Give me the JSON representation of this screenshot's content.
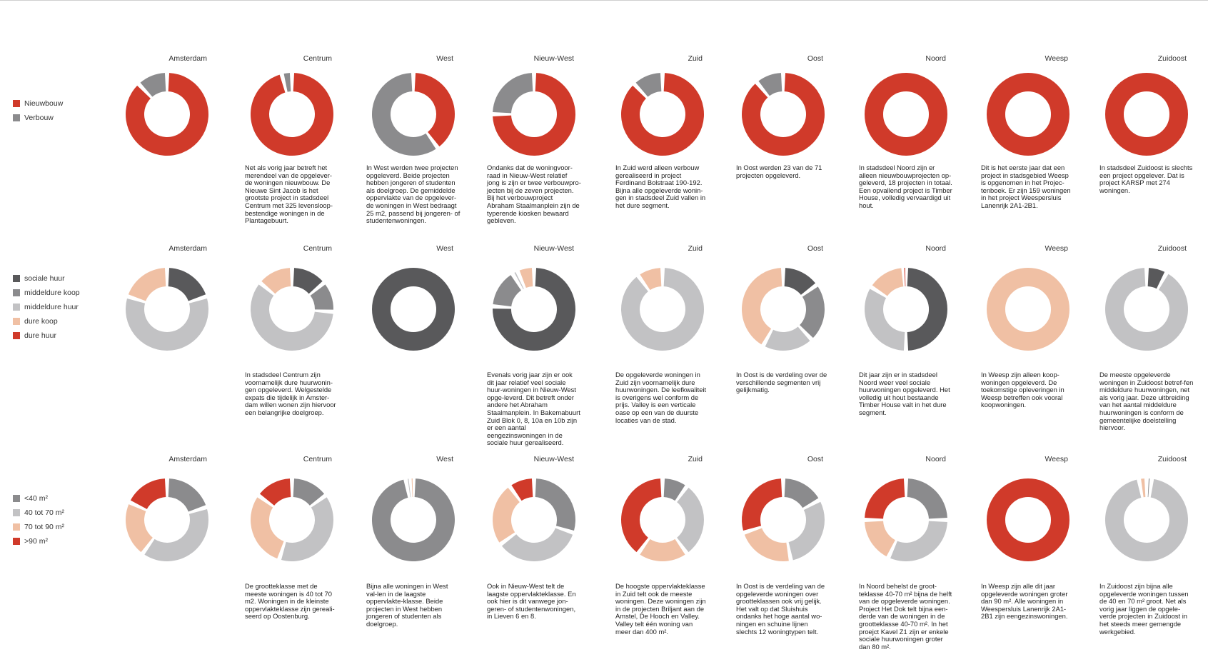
{
  "colors": {
    "Nieuwbouw": "#d03a2a",
    "Verbouw": "#8b8b8d",
    "sociale huur": "#59595b",
    "middeldure koop": "#8b8b8d",
    "middeldure huur": "#c2c2c4",
    "dure koop": "#f0c0a4",
    "dure huur": "#d03a2a",
    "<40 m²": "#8b8b8d",
    "40 tot 70 m²": "#c2c2c4",
    "70 tot 90 m²": "#f0c0a4",
    ">90 m²": "#d03a2a"
  },
  "chart_data": [
    {
      "type": "pie",
      "variant": "donut",
      "legend": [
        "Nieuwbouw",
        "Verbouw"
      ],
      "series": [
        {
          "name": "Nieuwbouw",
          "values": [
            88,
            96,
            40,
            75,
            88,
            89,
            100,
            100,
            100
          ]
        },
        {
          "name": "Verbouw",
          "values": [
            12,
            4,
            60,
            25,
            12,
            11,
            0,
            0,
            0
          ]
        }
      ],
      "panels": [
        {
          "title": "Amsterdam",
          "text": ""
        },
        {
          "title": "Centrum",
          "text": "Net als vorig jaar betreft het merendeel van de opgelever-de woningen nieuwbouw. De Nieuwe Sint Jacob is het grootste project in stadsdeel Centrum met 325 levensloop-bestendige woningen in de Plantagebuurt."
        },
        {
          "title": "West",
          "text": "In West werden twee projecten opgeleverd. Beide projecten hebben jongeren of studenten als doelgroep. De gemiddelde oppervlakte van de opgelever-de woningen in West bedraagt 25 m2, passend bij jongeren- of studentenwoningen."
        },
        {
          "title": "Nieuw-West",
          "text": "Ondanks dat de woningvoor-raad in Nieuw-West relatief jong is zijn er twee verbouwpro-jecten bij de zeven projecten. Bij het verbouwproject Abraham Staalmanplein zijn de typerende kiosken bewaard gebleven."
        },
        {
          "title": "Zuid",
          "text": "In Zuid werd alleen verbouw gerealiseerd in project Ferdinand Bolstraat 190-192. Bijna alle opgeleverde wonin-gen in stadsdeel Zuid vallen in het dure segment."
        },
        {
          "title": "Oost",
          "text": "In Oost werden 23 van de 71 projecten opgeleverd."
        },
        {
          "title": "Noord",
          "text": "In stadsdeel Noord zijn er alleen nieuwbouwprojecten op-geleverd, 18 projecten in totaal. Een opvallend project is Timber House, volledig vervaardigd uit hout."
        },
        {
          "title": "Weesp",
          "text": "Dit is het eerste jaar dat een project in stadsgebied Weesp is opgenomen in het Projec-tenboek. Er zijn 159 woningen in het project Weespersluis Lanenrijk 2A1-2B1."
        },
        {
          "title": "Zuidoost",
          "text": "In stadsdeel Zuidoost is slechts een project opgelever. Dat is project KARSP met 274 woningen."
        }
      ]
    },
    {
      "type": "pie",
      "variant": "donut",
      "legend": [
        "sociale huur",
        "middeldure koop",
        "middeldure huur",
        "dure koop",
        "dure huur"
      ],
      "series": [
        {
          "name": "sociale huur",
          "values": [
            20,
            14,
            100,
            70,
            0,
            15,
            50,
            0,
            8
          ]
        },
        {
          "name": "middeldure koop",
          "values": [
            0,
            12,
            0,
            14,
            0,
            23,
            0,
            0,
            0
          ]
        },
        {
          "name": "middeldure huur",
          "values": [
            60,
            60,
            0,
            2,
            90,
            20,
            34,
            0,
            92
          ]
        },
        {
          "name": "dure koop",
          "values": [
            20,
            14,
            0,
            6,
            10,
            42,
            15,
            100,
            0
          ]
        },
        {
          "name": "dure huur",
          "values": [
            0,
            0,
            0,
            0,
            0,
            0,
            1,
            0,
            0
          ]
        }
      ],
      "panels": [
        {
          "title": "Amsterdam",
          "text": ""
        },
        {
          "title": "Centrum",
          "text": "In stadsdeel Centrum zijn voornamelijk dure huurwonin-gen opgeleverd. Welgestelde expats die tijdelijk in Amster-dam willen wonen zijn hiervoor een belangrijke doelgroep."
        },
        {
          "title": "West",
          "text": ""
        },
        {
          "title": "Nieuw-West",
          "text": "Evenals vorig jaar zijn er ook dit jaar relatief veel sociale huur-woningen in Nieuw-West opge-leverd. Dit betreft onder andere het Abraham Staalmanplein. In Bakemabuurt Zuid Blok 0, 8, 10a en 10b zijn er een aantal eengezinswoningen in de sociale huur gerealiseerd."
        },
        {
          "title": "Zuid",
          "text": "De opgeleverde woningen in Zuid zijn voornamelijk dure huurwoningen. De leefkwaliteit is overigens wel conform de prijs. Valley is een verticale oase op een van de duurste locaties van de stad."
        },
        {
          "title": "Oost",
          "text": "In Oost is de verdeling over de verschillende segmenten vrij gelijkmatig."
        },
        {
          "title": "Noord",
          "text": "Dit jaar zijn er in stadsdeel Noord weer veel sociale huurwoningen opgeleverd. Het volledig uit hout bestaande Timber House valt in het dure segment."
        },
        {
          "title": "Weesp",
          "text": "In Weesp zijn alleen koop-woningen opgeleverd. De toekomstige opleveringen in Weesp betreffen ook vooral koopwoningen."
        },
        {
          "title": "Zuidoost",
          "text": "De meeste opgeleverde woningen in Zuidoost betref-fen middeldure huurwoningen, net als vorig jaar. Deze uitbreiding van het aantal middeldure huurwoningen is conform de gemeentelijke doelstelling hiervoor."
        }
      ]
    },
    {
      "type": "pie",
      "variant": "donut",
      "legend": [
        "<40 m²",
        "40 tot 70 m²",
        "70 tot 90 m²",
        ">90 m²"
      ],
      "series": [
        {
          "name": "<40 m²",
          "values": [
            20,
            15,
            97,
            30,
            10,
            17,
            25,
            0,
            2
          ]
        },
        {
          "name": "40 tot 70 m²",
          "values": [
            40,
            40,
            2,
            35,
            30,
            30,
            32,
            0,
            95
          ]
        },
        {
          "name": "70 tot 90 m²",
          "values": [
            22,
            30,
            1,
            25,
            20,
            23,
            18,
            0,
            3
          ]
        },
        {
          "name": ">90 m²",
          "values": [
            18,
            15,
            0,
            10,
            40,
            30,
            25,
            100,
            0
          ]
        }
      ],
      "panels": [
        {
          "title": "Amsterdam",
          "text": ""
        },
        {
          "title": "Centrum",
          "text": "De grootteklasse met de meeste woningen is 40 tot 70 m2. Woningen in de kleinste oppervlakteklasse zijn gereali-seerd op Oostenburg."
        },
        {
          "title": "West",
          "text": "Bijna alle woningen in West val-len in de laagste oppervlakte-klasse. Beide projecten in West hebben jongeren of studenten als doelgroep."
        },
        {
          "title": "Nieuw-West",
          "text": "Ook in Nieuw-West telt de laagste oppervlakteklasse. En ook hier is dit vanwege jon-geren- of studentenwoningen, in Lieven 6 en 8."
        },
        {
          "title": "Zuid",
          "text": "De hoogste oppervlakteklasse in Zuid telt ook de meeste woningen. Deze woningen zijn in de projecten Briljant aan de Amstel, De Hooch en Valley. Valley telt één woning van meer dan 400 m²."
        },
        {
          "title": "Oost",
          "text": "In Oost is de verdeling van de opgeleverde woningen over grootteklassen ook vrij gelijk. Het valt op dat Sluishuis ondanks het hoge aantal wo-ningen en schuine lijnen slechts 12 woningtypen telt."
        },
        {
          "title": "Noord",
          "text": "In Noord behelst de groot-teklasse 40-70 m² bijna de helft van de opgeleverde woningen. Project Het Dok telt bijna een-derde van de woningen in de grootteklasse 40-70 m². In het proejct Kavel Z1 zijn er enkele sociale huurwoningen groter dan 80 m²."
        },
        {
          "title": "Weesp",
          "text": "In Weesp zijn alle dit jaar opgeleverde woningen groter dan 90 m². Alle woningen in Weespersluis Lanenrijk 2A1-2B1 zijn eengezinswoningen."
        },
        {
          "title": "Zuidoost",
          "text": "In Zuidoost zijn bijna alle opgeleverde woningen tussen de 40 en 70 m² groot. Net als vorig jaar liggen de opgele-verde projecten in Zuidoost in het steeds meer gemengde werkgebied."
        }
      ]
    }
  ]
}
